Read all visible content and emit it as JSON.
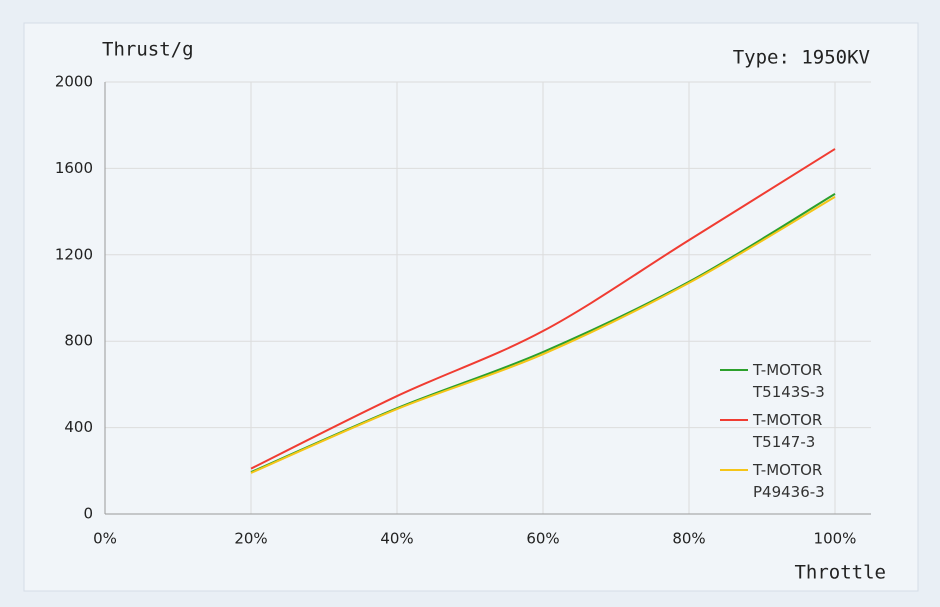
{
  "chart_data": {
    "type": "line",
    "annotation": "Type: 1950KV",
    "y_label": "Thrust/g",
    "x_label": "Throttle",
    "x": [
      20,
      40,
      60,
      80,
      100
    ],
    "series": [
      {
        "name": "T-MOTOR\nT5143S-3",
        "color": "#2ca02c",
        "values": [
          194,
          490,
          750,
          1075,
          1482
        ]
      },
      {
        "name": "T-MOTOR\nT5147-3",
        "color": "#f03c32",
        "values": [
          210,
          546,
          847,
          1268,
          1690
        ]
      },
      {
        "name": "T-MOTOR\nP49436-3",
        "color": "#f5c518",
        "values": [
          190,
          486,
          740,
          1070,
          1468
        ]
      }
    ],
    "xlim": [
      0,
      100
    ],
    "xticks": [
      {
        "value": 0,
        "label": "0%"
      },
      {
        "value": 20,
        "label": "20%"
      },
      {
        "value": 40,
        "label": "40%"
      },
      {
        "value": 60,
        "label": "60%"
      },
      {
        "value": 80,
        "label": "80%"
      },
      {
        "value": 100,
        "label": "100%"
      }
    ],
    "ylim": [
      0,
      2000
    ],
    "yticks": [
      0,
      400,
      800,
      1200,
      1600,
      2000
    ],
    "grid": true,
    "legend": "lower right"
  }
}
